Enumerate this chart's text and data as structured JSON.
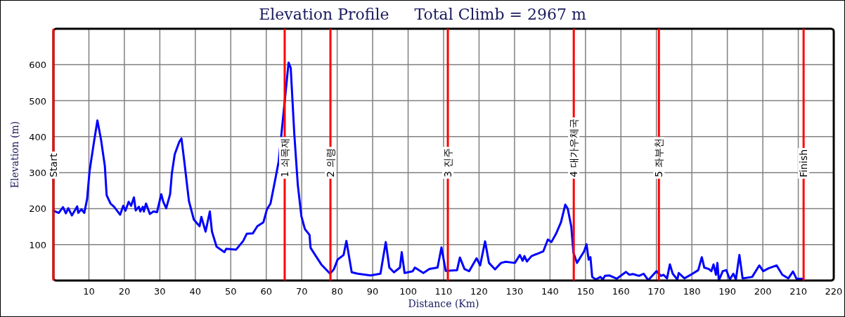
{
  "chart_data": {
    "type": "line",
    "title": "Elevation Profile",
    "subtitle": "Total Climb = 2967 m",
    "xlabel": "Distance (Km)",
    "ylabel": "Elevation (m)",
    "xlim": [
      0,
      220
    ],
    "ylim": [
      0,
      700
    ],
    "xticks": [
      10,
      20,
      30,
      40,
      50,
      60,
      70,
      80,
      90,
      100,
      110,
      120,
      130,
      140,
      150,
      160,
      170,
      180,
      190,
      200,
      210,
      220
    ],
    "yticks": [
      100,
      200,
      300,
      400,
      500,
      600
    ],
    "grid": true,
    "marker": "none",
    "line_style": "solid",
    "ref_lines": [
      {
        "axis": "x",
        "value": 0,
        "label": "Start",
        "color": "#ff0000"
      },
      {
        "axis": "x",
        "value": 65.2,
        "label": "1 쇠목재",
        "color": "#ff0000"
      },
      {
        "axis": "x",
        "value": 78.1,
        "label": "2 의령",
        "color": "#ff0000"
      },
      {
        "axis": "x",
        "value": 111.2,
        "label": "3 진주",
        "color": "#ff0000"
      },
      {
        "axis": "x",
        "value": 146.7,
        "label": "4 대가우체국",
        "color": "#ff0000"
      },
      {
        "axis": "x",
        "value": 170.7,
        "label": "5 좌부천",
        "color": "#ff0000"
      },
      {
        "axis": "x",
        "value": 211.5,
        "label": "Finish",
        "color": "#ff0000"
      }
    ],
    "series": [
      {
        "color": "#0000ff",
        "x": [
          0,
          1.5,
          2.7,
          3.5,
          4.2,
          5.2,
          6.7,
          7.0,
          7.9,
          8.7,
          9.5,
          10.2,
          11.4,
          12.4,
          13.4,
          14.5,
          15.0,
          16.1,
          17.1,
          18.8,
          19.7,
          20.3,
          21.2,
          21.9,
          22.7,
          23.2,
          24.1,
          24.5,
          25.2,
          25.5,
          26.1,
          27.2,
          28.2,
          29.2,
          30.4,
          31.0,
          31.8,
          32.9,
          33.4,
          34.2,
          35.5,
          36.1,
          36.9,
          38.2,
          39.6,
          41.2,
          41.7,
          42.9,
          44.1,
          44.7,
          46.0,
          48.2,
          48.7,
          51.5,
          53.5,
          54.5,
          56.2,
          57.5,
          59.2,
          60.2,
          61.2,
          62.5,
          63.5,
          64.9,
          66.3,
          66.9,
          67.9,
          68.9,
          69.9,
          70.9,
          72.2,
          72.5,
          73.8,
          75.5,
          78.0,
          79.1,
          80.1,
          81.8,
          82.6,
          84.1,
          85.8,
          89.4,
          92.2,
          93.7,
          94.7,
          96.0,
          97.7,
          98.2,
          99.0,
          101.3,
          101.9,
          104.3,
          106.0,
          108.3,
          109.4,
          110.6,
          113.8,
          114.6,
          115.9,
          117.2,
          119.3,
          120.3,
          121.7,
          122.8,
          124.5,
          126.2,
          127.5,
          130.1,
          131.5,
          132.3,
          132.8,
          133.5,
          134.8,
          138.1,
          139.4,
          140.4,
          141.7,
          143.1,
          144.3,
          145.0,
          146.0,
          146.6,
          147.6,
          149.6,
          150.3,
          150.9,
          151.4,
          151.9,
          152.9,
          154.2,
          154.9,
          155.5,
          156.8,
          158.8,
          161.4,
          162.4,
          163.4,
          165.1,
          166.4,
          167.7,
          170.0,
          171.3,
          172.0,
          173.0,
          173.8,
          174.6,
          175.9,
          176.3,
          177.9,
          180.2,
          181.8,
          182.8,
          183.5,
          184.8,
          185.5,
          186.1,
          186.8,
          187.2,
          187.6,
          188.7,
          189.7,
          190.7,
          191.7,
          192.4,
          193.4,
          194.3,
          197.0,
          199.0,
          200.1,
          201.6,
          203.9,
          205.5,
          207.2,
          208.5,
          209.5,
          211.4
        ],
        "values": [
          194,
          188,
          204,
          187,
          201,
          181,
          206,
          188,
          198,
          188,
          227,
          305,
          383,
          445,
          393,
          318,
          237,
          214,
          205,
          183,
          208,
          194,
          219,
          208,
          231,
          195,
          205,
          192,
          205,
          192,
          214,
          185,
          192,
          190,
          240,
          218,
          201,
          240,
          299,
          351,
          386,
          395,
          331,
          221,
          169,
          151,
          177,
          136,
          192,
          136,
          94,
          79,
          88,
          86,
          110,
          130,
          131,
          151,
          162,
          198,
          214,
          279,
          331,
          468,
          606,
          591,
          409,
          266,
          179,
          143,
          127,
          91,
          71,
          45,
          19,
          32,
          58,
          71,
          110,
          23,
          19,
          14,
          19,
          107,
          36,
          23,
          36,
          79,
          21,
          26,
          36,
          21,
          32,
          36,
          92,
          27,
          29,
          64,
          32,
          26,
          62,
          42,
          109,
          49,
          31,
          49,
          52,
          49,
          71,
          55,
          68,
          53,
          68,
          81,
          114,
          107,
          130,
          162,
          211,
          200,
          150,
          78,
          49,
          81,
          101,
          58,
          65,
          10,
          3,
          10,
          3,
          13,
          14,
          5,
          24,
          16,
          18,
          13,
          19,
          1,
          26,
          13,
          16,
          6,
          45,
          19,
          3,
          21,
          6,
          19,
          29,
          65,
          36,
          32,
          26,
          45,
          16,
          49,
          0,
          26,
          29,
          3,
          19,
          3,
          71,
          6,
          10,
          42,
          26,
          34,
          42,
          16,
          6,
          25,
          5,
          5
        ]
      }
    ]
  }
}
